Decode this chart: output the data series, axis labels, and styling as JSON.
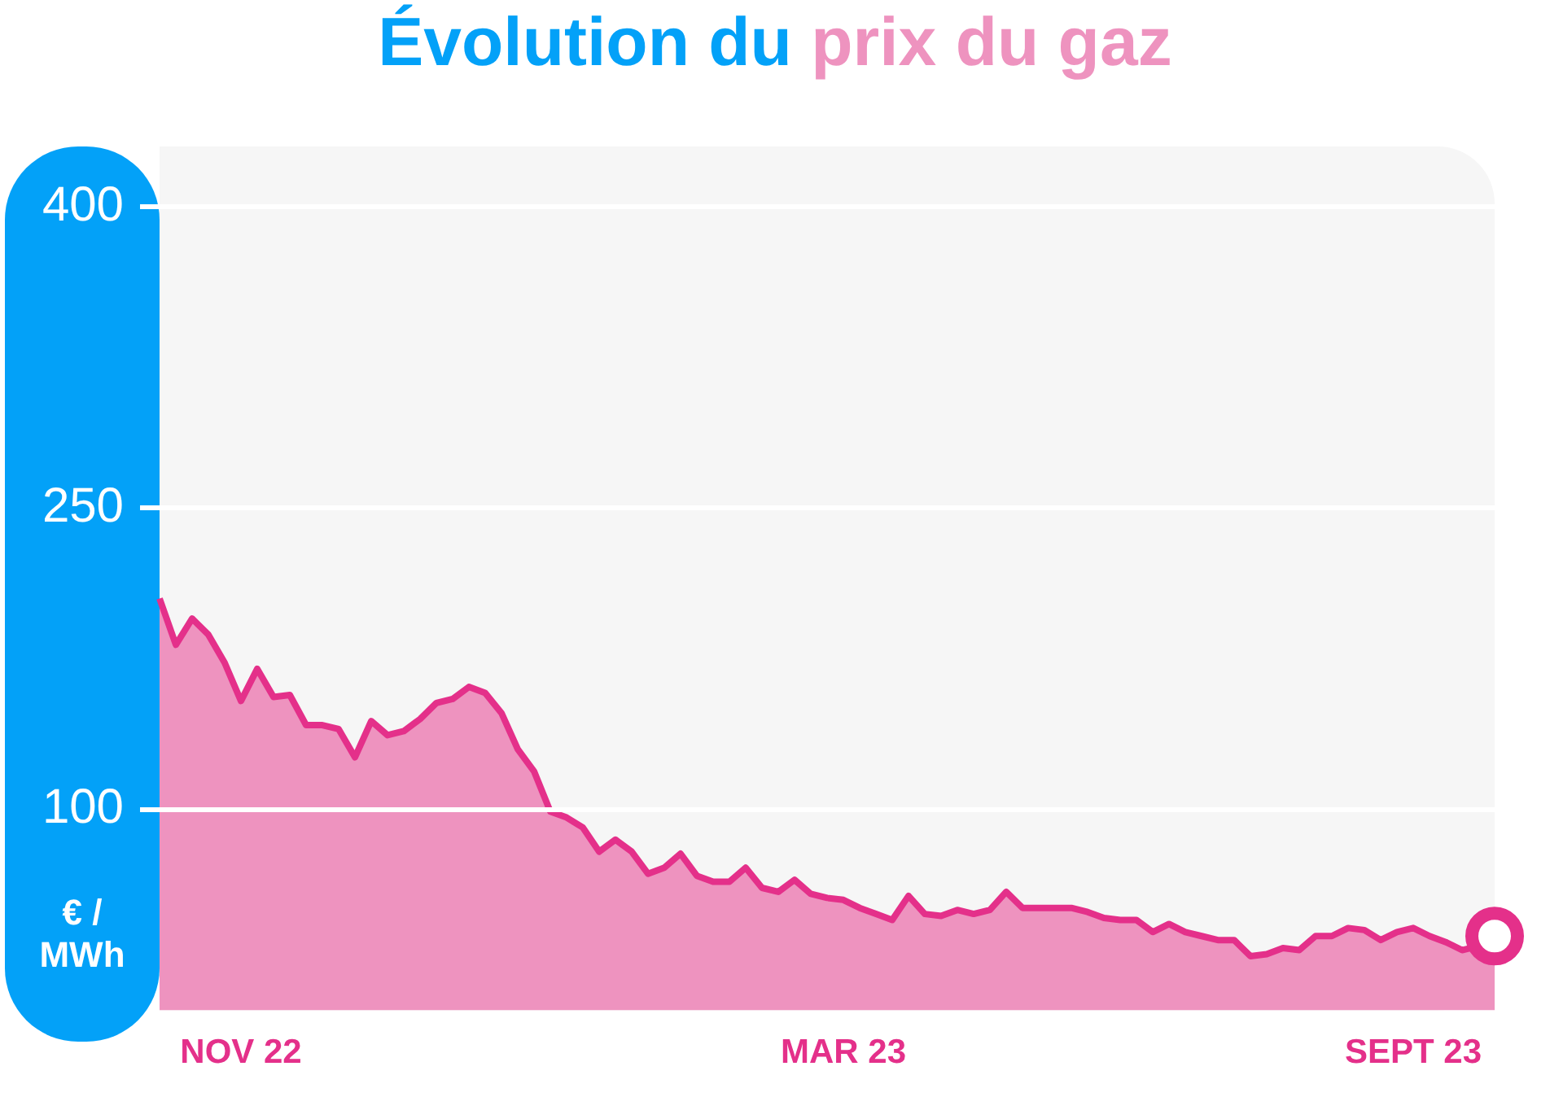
{
  "chart_data": {
    "type": "area",
    "title": "Évolution du prix du gaz",
    "ylabel": "€ / MWh",
    "categories": [
      null,
      null,
      null,
      null,
      null,
      "NOV 22",
      null,
      null,
      null,
      null,
      null,
      null,
      null,
      null,
      null,
      null,
      null,
      null,
      null,
      null,
      null,
      null,
      null,
      null,
      null,
      null,
      null,
      null,
      null,
      null,
      null,
      null,
      null,
      null,
      null,
      null,
      null,
      null,
      null,
      null,
      null,
      null,
      "MAR 23",
      null,
      null,
      null,
      null,
      null,
      null,
      null,
      null,
      null,
      null,
      null,
      null,
      null,
      null,
      null,
      null,
      null,
      null,
      null,
      null,
      null,
      null,
      null,
      null,
      null,
      null,
      null,
      null,
      null,
      null,
      null,
      null,
      null,
      null,
      "SEPT 23",
      null,
      null,
      null,
      null,
      null
    ],
    "series": [
      {
        "color": "#e4308a",
        "values": [
          205,
          182,
          195,
          187,
          173,
          154,
          170,
          156,
          157,
          142,
          142,
          140,
          126,
          144,
          137,
          139,
          145,
          153,
          155,
          161,
          158,
          148,
          130,
          119,
          99,
          96,
          91,
          79,
          85,
          79,
          68,
          71,
          78,
          67,
          64,
          64,
          71,
          61,
          59,
          65,
          58,
          56,
          55,
          51,
          48,
          45,
          57,
          48,
          47,
          50,
          48,
          50,
          59,
          51,
          51,
          51,
          51,
          49,
          46,
          45,
          45,
          39,
          43,
          39,
          37,
          35,
          35,
          27,
          28,
          31,
          30,
          37,
          37,
          41,
          40,
          35,
          39,
          41,
          37,
          34,
          30,
          32,
          37
        ]
      }
    ],
    "ylim": [
      0,
      430
    ],
    "yticks": [
      100,
      250,
      400
    ],
    "grid": "y",
    "legend": false
  }
}
